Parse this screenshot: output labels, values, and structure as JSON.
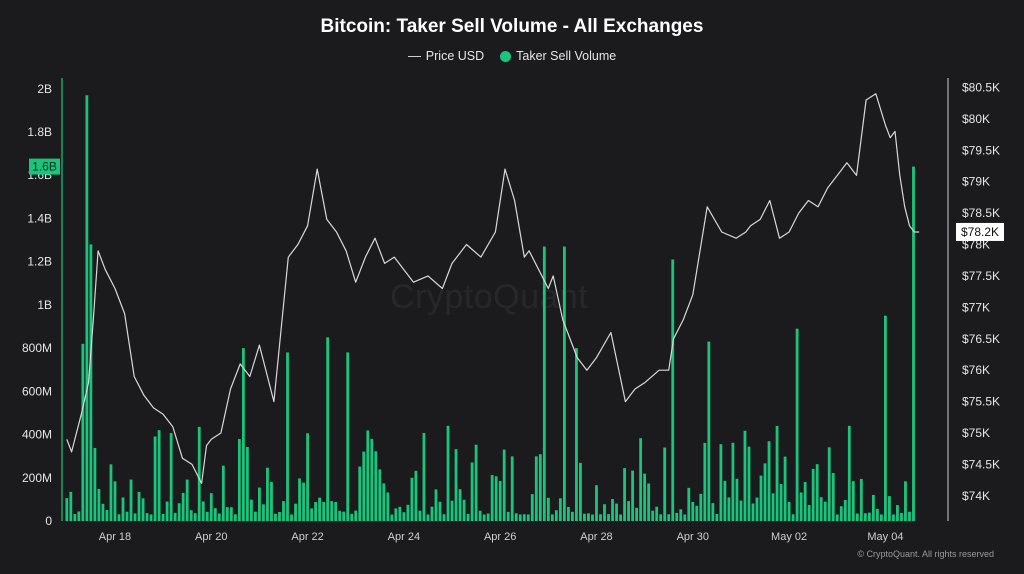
{
  "chart_data": {
    "type": "bar+line",
    "title": "Bitcoin: Taker Sell Volume - All Exchanges",
    "legend": [
      {
        "name": "Price USD",
        "marker": "line",
        "color": "#cfcfcf"
      },
      {
        "name": "Taker Sell Volume",
        "marker": "dot",
        "color": "#1bc47d"
      }
    ],
    "legend_placement": "top-center",
    "grid": false,
    "x_ticks": [
      "Apr 18",
      "Apr 20",
      "Apr 22",
      "Apr 24",
      "Apr 26",
      "Apr 28",
      "Apr 30",
      "May 02",
      "May 04"
    ],
    "x_range_days": [
      16.9,
      35.3
    ],
    "left_axis": {
      "ticks": [
        "0",
        "200M",
        "400M",
        "600M",
        "800M",
        "1B",
        "1.2B",
        "1.4B",
        "1.6B",
        "1.8B",
        "2B"
      ],
      "tick_values": [
        0,
        200000000,
        400000000,
        600000000,
        800000000,
        1000000000,
        1200000000,
        1400000000,
        1600000000,
        1800000000,
        2000000000
      ],
      "range": [
        0,
        2050000000
      ],
      "current_label": "1.6B",
      "current_value": 1640000000
    },
    "right_axis": {
      "ticks": [
        "$74K",
        "$74.5K",
        "$75K",
        "$75.5K",
        "$76K",
        "$76.5K",
        "$77K",
        "$77.5K",
        "$78K",
        "$78.5K",
        "$79K",
        "$79.5K",
        "$80K",
        "$80.5K"
      ],
      "tick_values": [
        74000,
        74500,
        75000,
        75500,
        76000,
        76500,
        77000,
        77500,
        78000,
        78500,
        79000,
        79500,
        80000,
        80500
      ],
      "range": [
        73600,
        80650
      ],
      "current_label": "$78.2K",
      "current_value": 78200
    },
    "price_series": {
      "name": "Price USD",
      "x_days": [
        17.0,
        17.1,
        17.3,
        17.45,
        17.55,
        17.65,
        17.8,
        18.0,
        18.2,
        18.4,
        18.6,
        18.8,
        19.0,
        19.2,
        19.4,
        19.6,
        19.8,
        19.9,
        20.0,
        20.2,
        20.4,
        20.6,
        20.8,
        21.0,
        21.3,
        21.6,
        21.8,
        22.0,
        22.2,
        22.4,
        22.6,
        22.8,
        23.0,
        23.2,
        23.4,
        23.6,
        23.8,
        24.0,
        24.2,
        24.5,
        24.8,
        25.0,
        25.3,
        25.6,
        25.9,
        26.1,
        26.3,
        26.5,
        26.6,
        26.8,
        27.0,
        27.1,
        27.3,
        27.6,
        27.8,
        28.0,
        28.3,
        28.6,
        28.8,
        29.0,
        29.3,
        29.5,
        29.6,
        29.8,
        30.0,
        30.3,
        30.6,
        30.9,
        31.1,
        31.2,
        31.4,
        31.6,
        31.8,
        32.0,
        32.2,
        32.4,
        32.6,
        32.8,
        33.0,
        33.2,
        33.4,
        33.6,
        33.8,
        34.0,
        34.1,
        34.2,
        34.3,
        34.4,
        34.5,
        34.6,
        34.7
      ],
      "values": [
        74900,
        74700,
        75300,
        75800,
        76800,
        77900,
        77600,
        77300,
        76900,
        75900,
        75600,
        75400,
        75300,
        75100,
        74600,
        74500,
        74200,
        74800,
        74900,
        75000,
        75700,
        76100,
        75900,
        76400,
        75500,
        77800,
        78000,
        78300,
        79200,
        78400,
        78200,
        77900,
        77400,
        77800,
        78100,
        77700,
        77800,
        77600,
        77400,
        77500,
        77300,
        77700,
        78000,
        77800,
        78200,
        79200,
        78700,
        77800,
        77900,
        77600,
        77300,
        77500,
        76800,
        76200,
        76000,
        76200,
        76600,
        75500,
        75700,
        75800,
        76000,
        76000,
        76500,
        76800,
        77200,
        78600,
        78200,
        78100,
        78200,
        78300,
        78400,
        78700,
        78100,
        78200,
        78500,
        78700,
        78600,
        78900,
        79100,
        79300,
        79100,
        80300,
        80400,
        79900,
        79700,
        79800,
        79100,
        78600,
        78300,
        78200,
        78200
      ],
      "color": "#d8d8d8"
    },
    "volume_series": {
      "name": "Taker Sell Volume",
      "bars_per_day": 12,
      "x_start_day": 17.0,
      "peaks": [
        {
          "x_day": 17.42,
          "value": 1970000000
        },
        {
          "x_day": 17.47,
          "value": 1280000000
        },
        {
          "x_day": 17.3,
          "value": 820000000
        },
        {
          "x_day": 20.7,
          "value": 800000000
        },
        {
          "x_day": 21.6,
          "value": 780000000
        },
        {
          "x_day": 22.4,
          "value": 850000000
        },
        {
          "x_day": 22.85,
          "value": 780000000
        },
        {
          "x_day": 26.95,
          "value": 1270000000
        },
        {
          "x_day": 27.3,
          "value": 1270000000
        },
        {
          "x_day": 27.6,
          "value": 800000000
        },
        {
          "x_day": 29.6,
          "value": 1210000000
        },
        {
          "x_day": 30.3,
          "value": 830000000
        },
        {
          "x_day": 32.15,
          "value": 890000000
        },
        {
          "x_day": 34.0,
          "value": 950000000
        },
        {
          "x_day": 34.62,
          "value": 1640000000
        }
      ],
      "typical_range": [
        30000000,
        450000000
      ],
      "color": "#1bc47d"
    }
  },
  "watermark": "CryptoQuant",
  "copyright": "© CryptoQuant. All rights reserved"
}
